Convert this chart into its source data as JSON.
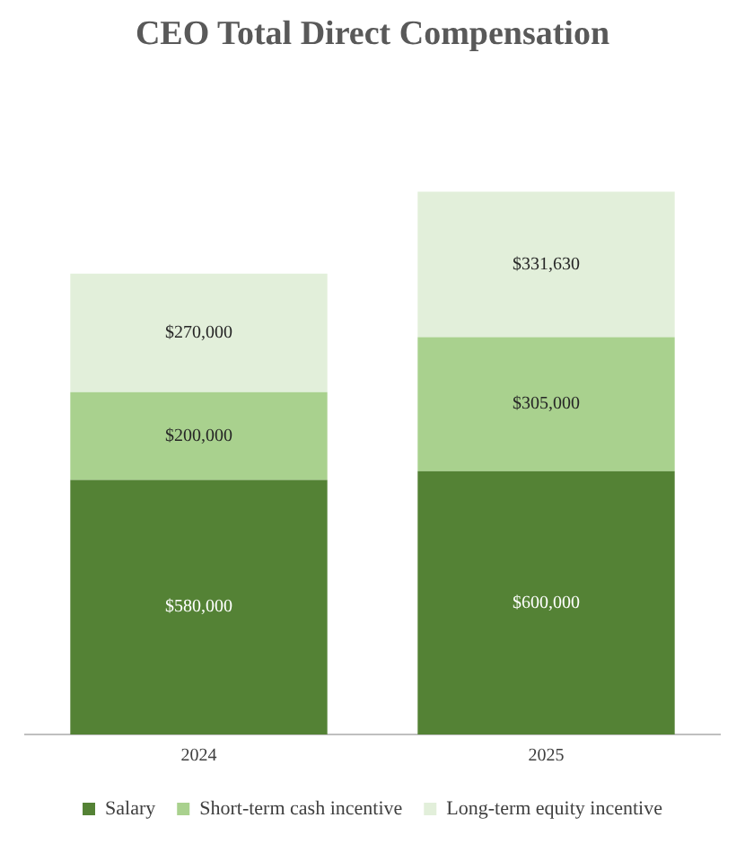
{
  "chart_data": {
    "type": "bar",
    "title": "CEO Total Direct Compensation",
    "categories": [
      "2024",
      "2025"
    ],
    "stacked": true,
    "legend": "bottom",
    "grid": false,
    "series": [
      {
        "name": "Salary",
        "color": "#548235",
        "values": [
          580000,
          600000
        ],
        "value_labels": [
          "$580,000",
          "$600,000"
        ]
      },
      {
        "name": "Short-term cash incentive",
        "color": "#a9d18e",
        "values": [
          200000,
          305000
        ],
        "value_labels": [
          "$200,000",
          "$305,000"
        ]
      },
      {
        "name": "Long-term equity incentive",
        "color": "#e2efda",
        "values": [
          270000,
          331630
        ],
        "value_labels": [
          "$270,000",
          "$331,630"
        ]
      }
    ]
  }
}
